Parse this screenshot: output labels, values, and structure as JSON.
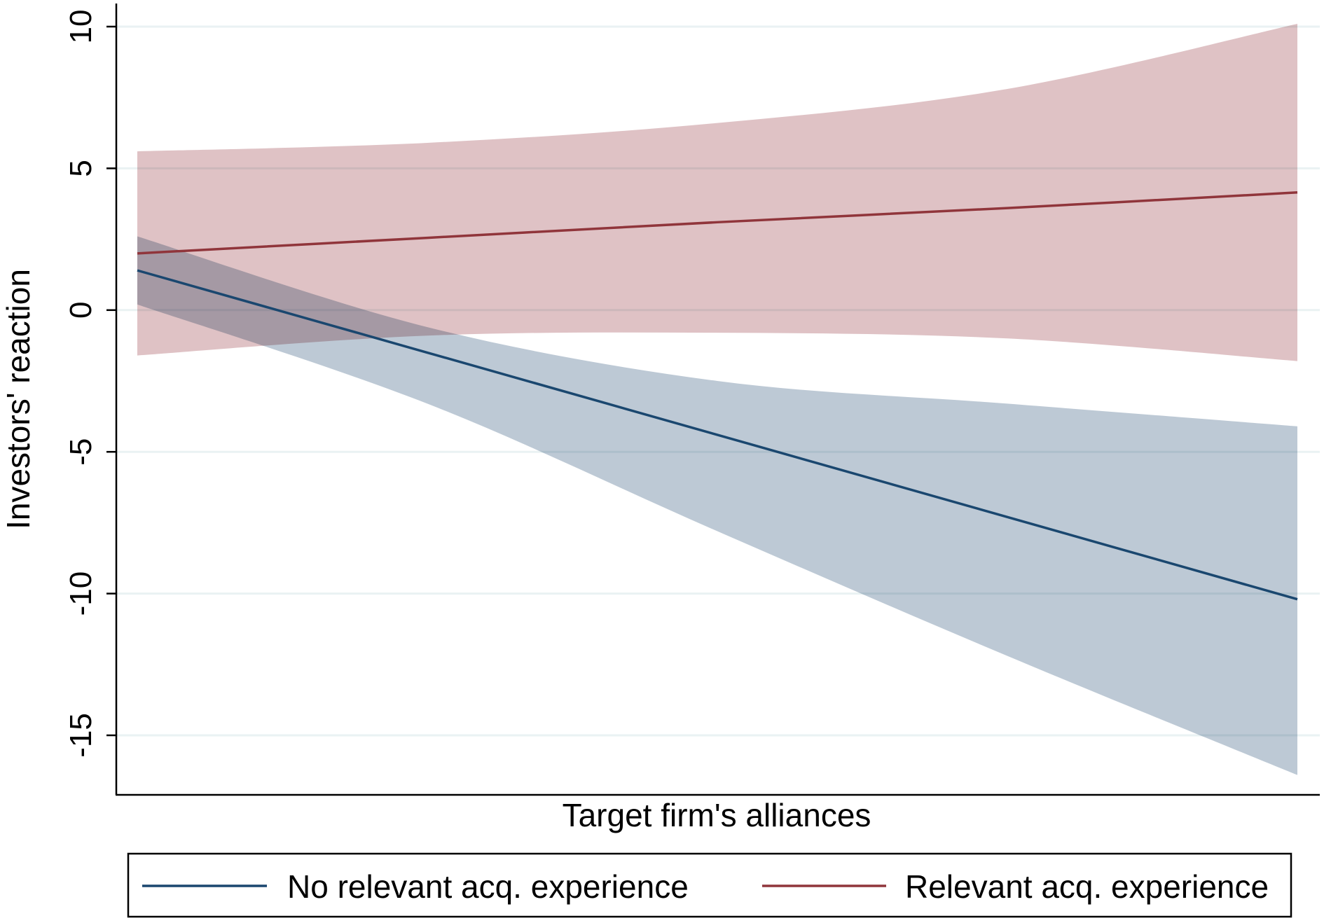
{
  "chart_data": {
    "type": "line",
    "title": "",
    "xlabel": "Target firm's alliances",
    "ylabel": "Investors' reaction",
    "ylim": [
      -17,
      11
    ],
    "yticks": [
      10,
      5,
      0,
      -5,
      -10,
      -15
    ],
    "xlim": [
      0,
      1
    ],
    "x": [
      0,
      0.25,
      0.5,
      0.75,
      1
    ],
    "grid": true,
    "legend_position": "bottom",
    "series": [
      {
        "name": "No relevant acq. experience",
        "color": "#1a476f",
        "band_color": "#a3b4c5",
        "values": [
          1.4,
          -1.5,
          -4.4,
          -7.3,
          -10.2
        ],
        "ci_lower": [
          0.2,
          -3.3,
          -7.8,
          -12.2,
          -16.4
        ],
        "ci_upper": [
          2.6,
          -0.6,
          -2.5,
          -3.3,
          -4.1
        ]
      },
      {
        "name": "Relevant acq. experience",
        "color": "#90353b",
        "band_color": "#d2abaf",
        "values": [
          2.0,
          2.55,
          3.1,
          3.6,
          4.15
        ],
        "ci_lower": [
          -1.6,
          -0.9,
          -0.8,
          -1.0,
          -1.8
        ],
        "ci_upper": [
          5.6,
          5.9,
          6.6,
          7.8,
          10.1
        ]
      }
    ]
  }
}
